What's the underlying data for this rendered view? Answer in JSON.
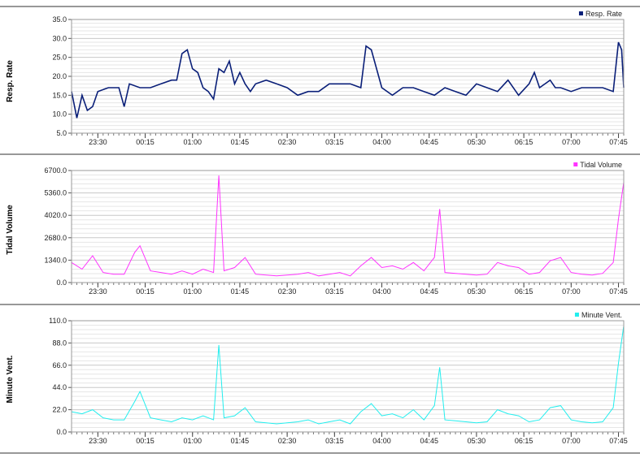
{
  "chart_data": [
    {
      "type": "line",
      "ylabel": "Resp. Rate",
      "series": [
        {
          "name": "Resp. Rate",
          "color": "#0a1f78"
        }
      ],
      "ylim": [
        5.0,
        35.0
      ],
      "yticks": [
        "5.0",
        "10.0",
        "15.0",
        "20.0",
        "25.0",
        "30.0",
        "35.0"
      ],
      "x_range": [
        "23:05",
        "07:50"
      ],
      "xticks": [
        "23:30",
        "00:15",
        "01:00",
        "01:45",
        "02:30",
        "03:15",
        "04:00",
        "04:45",
        "05:30",
        "06:15",
        "07:00",
        "07:45"
      ],
      "grid": true,
      "legend": "top-right",
      "x": [
        "23:05",
        "23:10",
        "23:15",
        "23:20",
        "23:25",
        "23:30",
        "23:40",
        "23:50",
        "23:55",
        "00:00",
        "00:10",
        "00:20",
        "00:30",
        "00:40",
        "00:45",
        "00:50",
        "00:55",
        "01:00",
        "01:05",
        "01:10",
        "01:15",
        "01:20",
        "01:25",
        "01:30",
        "01:35",
        "01:40",
        "01:45",
        "01:50",
        "01:55",
        "02:00",
        "02:10",
        "02:20",
        "02:30",
        "02:40",
        "02:50",
        "03:00",
        "03:10",
        "03:20",
        "03:30",
        "03:40",
        "03:45",
        "03:50",
        "04:00",
        "04:10",
        "04:20",
        "04:30",
        "04:40",
        "04:50",
        "05:00",
        "05:10",
        "05:20",
        "05:30",
        "05:40",
        "05:50",
        "06:00",
        "06:10",
        "06:20",
        "06:25",
        "06:30",
        "06:40",
        "06:45",
        "06:50",
        "07:00",
        "07:10",
        "07:20",
        "07:30",
        "07:40",
        "07:45",
        "07:48",
        "07:50"
      ],
      "values": [
        16,
        9,
        15,
        11,
        12,
        16,
        17,
        17,
        12,
        18,
        17,
        17,
        18,
        19,
        19,
        26,
        27,
        22,
        21,
        17,
        16,
        14,
        22,
        21,
        24,
        18,
        21,
        18,
        16,
        18,
        19,
        18,
        17,
        15,
        16,
        16,
        18,
        18,
        18,
        17,
        28,
        27,
        17,
        15,
        17,
        17,
        16,
        15,
        17,
        16,
        15,
        18,
        17,
        16,
        19,
        15,
        18,
        21,
        17,
        19,
        17,
        17,
        16,
        17,
        17,
        17,
        16,
        29,
        27,
        17
      ]
    },
    {
      "type": "line",
      "ylabel": "Tidal Volume",
      "series": [
        {
          "name": "Tidal Volume",
          "color": "#ff33ff"
        }
      ],
      "ylim": [
        0.0,
        6700.0
      ],
      "yticks": [
        "0.0",
        "1340.0",
        "2680.0",
        "4020.0",
        "5360.0",
        "6700.0"
      ],
      "x_range": [
        "23:05",
        "07:50"
      ],
      "xticks": [
        "23:30",
        "00:15",
        "01:00",
        "01:45",
        "02:30",
        "03:15",
        "04:00",
        "04:45",
        "05:30",
        "06:15",
        "07:00",
        "07:45"
      ],
      "grid": true,
      "legend": "top-right",
      "x": [
        "23:05",
        "23:15",
        "23:25",
        "23:35",
        "23:45",
        "23:55",
        "00:05",
        "00:10",
        "00:20",
        "00:30",
        "00:40",
        "00:50",
        "01:00",
        "01:10",
        "01:20",
        "01:25",
        "01:30",
        "01:40",
        "01:50",
        "02:00",
        "02:10",
        "02:20",
        "02:30",
        "02:40",
        "02:50",
        "03:00",
        "03:10",
        "03:20",
        "03:30",
        "03:40",
        "03:50",
        "04:00",
        "04:10",
        "04:20",
        "04:30",
        "04:40",
        "04:50",
        "04:55",
        "05:00",
        "05:10",
        "05:20",
        "05:30",
        "05:40",
        "05:50",
        "06:00",
        "06:10",
        "06:20",
        "06:30",
        "06:40",
        "06:50",
        "07:00",
        "07:10",
        "07:20",
        "07:30",
        "07:40",
        "07:45",
        "07:50"
      ],
      "values": [
        1200,
        800,
        1600,
        600,
        500,
        500,
        1800,
        2200,
        700,
        600,
        500,
        700,
        500,
        800,
        600,
        6400,
        700,
        900,
        1500,
        500,
        450,
        400,
        450,
        500,
        600,
        400,
        500,
        600,
        400,
        1000,
        1500,
        900,
        1000,
        800,
        1200,
        700,
        1500,
        4400,
        600,
        550,
        500,
        450,
        500,
        1200,
        1000,
        900,
        500,
        600,
        1300,
        1500,
        600,
        500,
        450,
        550,
        1200,
        3800,
        6000
      ]
    },
    {
      "type": "line",
      "ylabel": "Minute Vent.",
      "series": [
        {
          "name": "Minute Vent.",
          "color": "#22eeee"
        }
      ],
      "ylim": [
        0.0,
        110.0
      ],
      "yticks": [
        "0.0",
        "22.0",
        "44.0",
        "66.0",
        "88.0",
        "110.0"
      ],
      "x_range": [
        "23:05",
        "07:50"
      ],
      "xticks": [
        "23:30",
        "00:15",
        "01:00",
        "01:45",
        "02:30",
        "03:15",
        "04:00",
        "04:45",
        "05:30",
        "06:15",
        "07:00",
        "07:45"
      ],
      "grid": true,
      "legend": "top-right",
      "x": [
        "23:05",
        "23:15",
        "23:25",
        "23:35",
        "23:45",
        "23:55",
        "00:05",
        "00:10",
        "00:20",
        "00:30",
        "00:40",
        "00:50",
        "01:00",
        "01:10",
        "01:20",
        "01:25",
        "01:30",
        "01:40",
        "01:50",
        "02:00",
        "02:10",
        "02:20",
        "02:30",
        "02:40",
        "02:50",
        "03:00",
        "03:10",
        "03:20",
        "03:30",
        "03:40",
        "03:50",
        "04:00",
        "04:10",
        "04:20",
        "04:30",
        "04:40",
        "04:50",
        "04:55",
        "05:00",
        "05:10",
        "05:20",
        "05:30",
        "05:40",
        "05:50",
        "06:00",
        "06:10",
        "06:20",
        "06:30",
        "06:40",
        "06:50",
        "07:00",
        "07:10",
        "07:20",
        "07:30",
        "07:40",
        "07:45",
        "07:50"
      ],
      "values": [
        20,
        18,
        22,
        14,
        12,
        12,
        30,
        40,
        14,
        12,
        10,
        14,
        12,
        16,
        12,
        86,
        14,
        16,
        24,
        10,
        9,
        8,
        9,
        10,
        12,
        8,
        10,
        12,
        8,
        20,
        28,
        16,
        18,
        14,
        22,
        12,
        26,
        64,
        12,
        11,
        10,
        9,
        10,
        22,
        18,
        16,
        10,
        12,
        24,
        26,
        12,
        10,
        9,
        10,
        24,
        68,
        105
      ]
    }
  ]
}
